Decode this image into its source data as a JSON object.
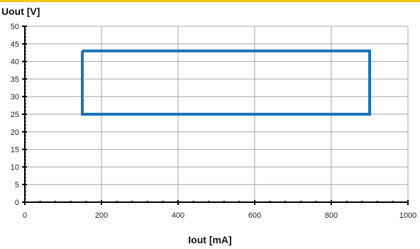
{
  "colors": {
    "accent_rule": "#f5c400",
    "series_line": "#1a73b8",
    "grid": "#a6a6a6",
    "axis": "#000000"
  },
  "chart_data": {
    "type": "line",
    "xlabel": "Iout [mA]",
    "ylabel": "Uout [V]",
    "xlim": [
      0,
      1000
    ],
    "ylim": [
      0,
      50
    ],
    "x_ticks": [
      0,
      200,
      400,
      600,
      800,
      1000
    ],
    "y_ticks": [
      0,
      5,
      10,
      15,
      20,
      25,
      30,
      35,
      40,
      45,
      50
    ],
    "grid": true,
    "series": [
      {
        "x": [
          150,
          900,
          900,
          150,
          150
        ],
        "y": [
          43,
          43,
          25,
          25,
          43
        ]
      }
    ]
  }
}
